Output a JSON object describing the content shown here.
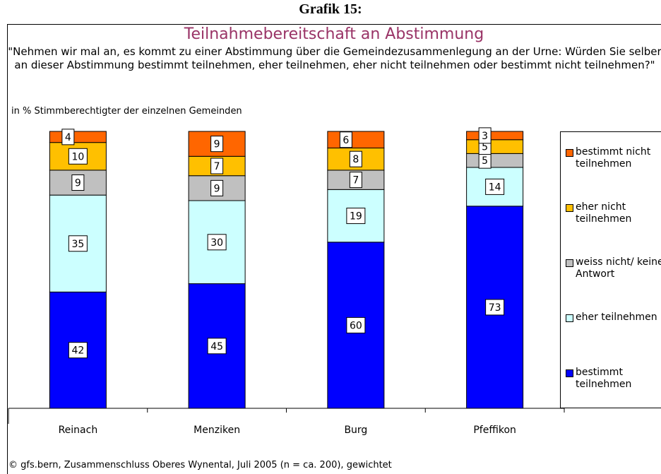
{
  "chart_data": {
    "type": "stacked_bar",
    "heading": "Grafik 15:",
    "title": "Teilnahmebereitschaft an Abstimmung",
    "subtitle": "\"Nehmen wir mal an, es kommt zu einer Abstimmung über die Gemeindezusammenlegung an der Urne: Würden Sie selber an dieser Abstimmung bestimmt teilnehmen, eher teilnehmen, eher nicht teilnehmen oder bestimmt nicht teilnehmen?\"",
    "y_label": "in % Stimmberechtigter der einzelnen Gemeinden",
    "footer": "© gfs.bern, Zusammenschluss Oberes Wynental, Juli 2005 (n = ca. 200), gewichtet",
    "categories": [
      "Reinach",
      "Menziken",
      "Burg",
      "Pfeffikon"
    ],
    "series": [
      {
        "name": "bestimmt teilnehmen",
        "color": "#0000ff",
        "values": [
          42,
          45,
          60,
          73
        ]
      },
      {
        "name": "eher teilnehmen",
        "color": "#ccffff",
        "values": [
          35,
          30,
          19,
          14
        ]
      },
      {
        "name": "weiss nicht/ keine Antwort",
        "color": "#c0c0c0",
        "values": [
          9,
          9,
          7,
          5
        ]
      },
      {
        "name": "eher nicht teilnehmen",
        "color": "#ffc000",
        "values": [
          10,
          7,
          8,
          5
        ]
      },
      {
        "name": "bestimmt nicht teilnehmen",
        "color": "#ff6600",
        "values": [
          4,
          9,
          6,
          3
        ]
      }
    ],
    "ylim": [
      0,
      100
    ],
    "legend": "right"
  }
}
